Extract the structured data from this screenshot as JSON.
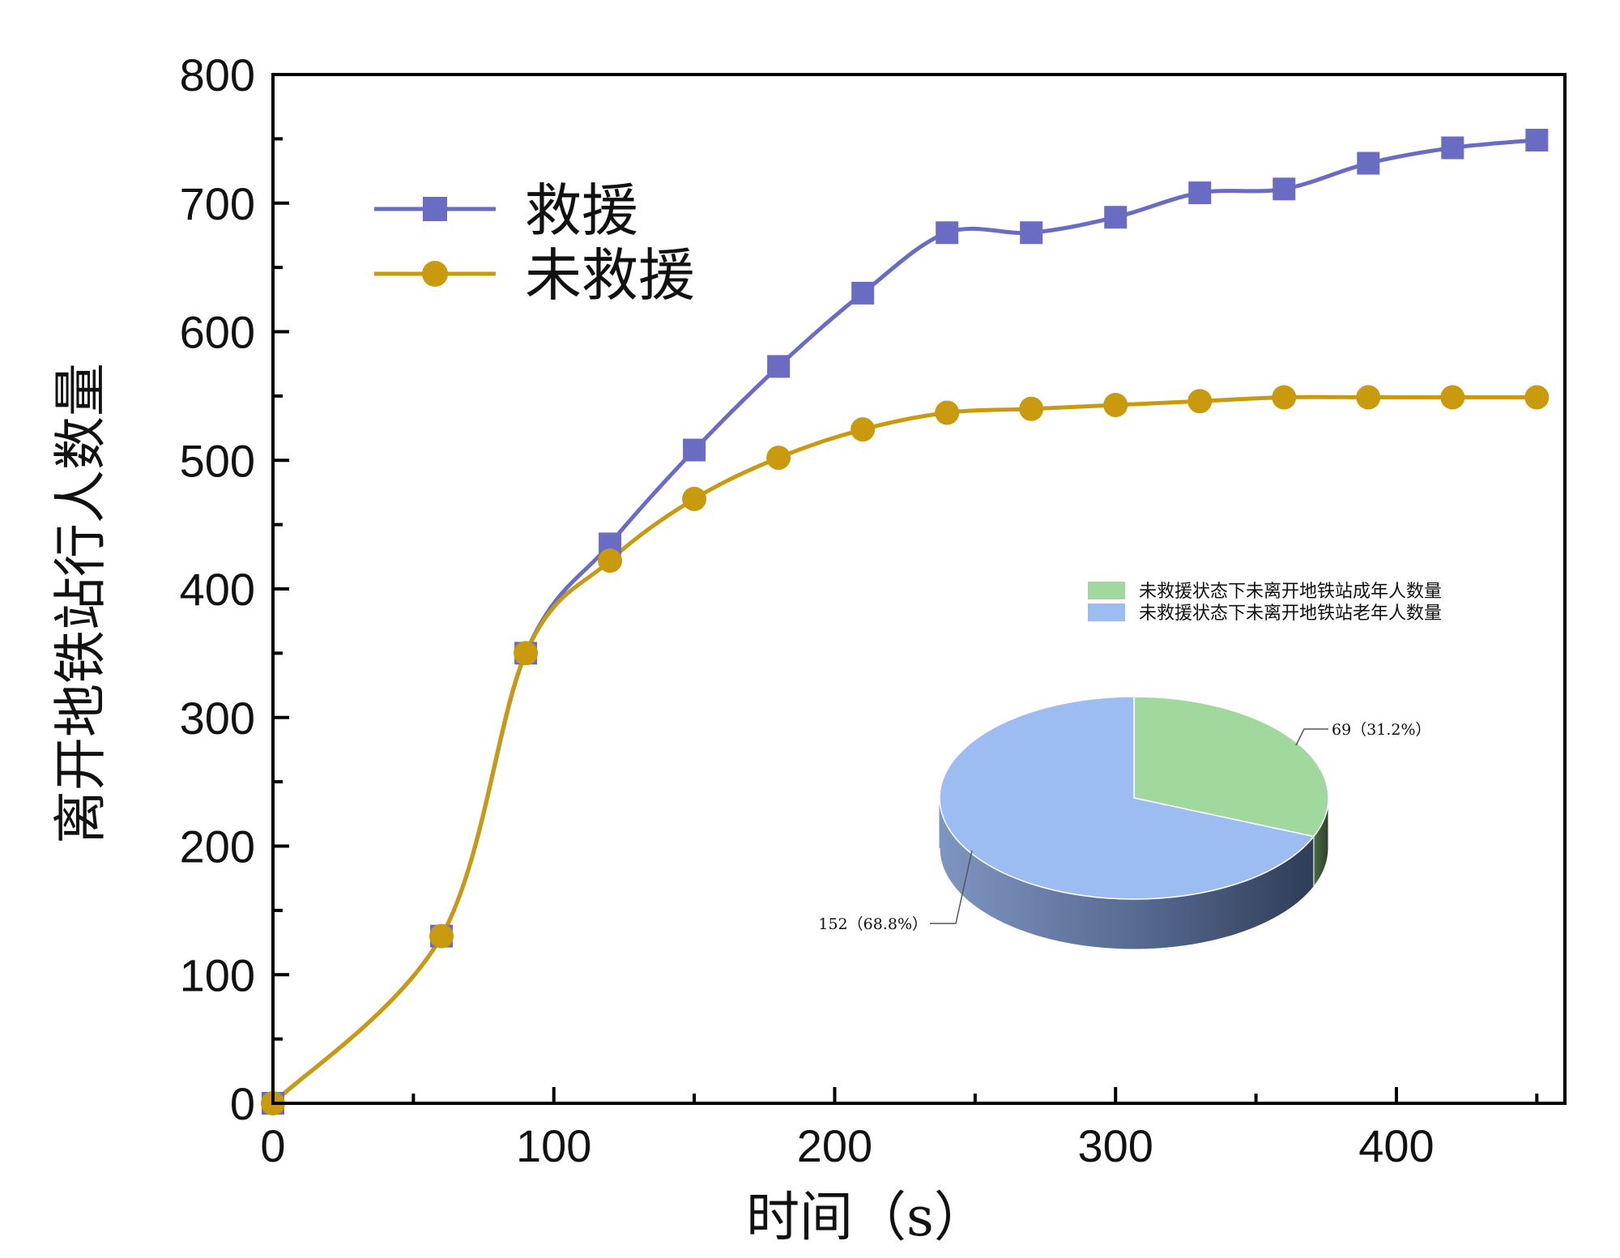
{
  "chart_data": [
    {
      "type": "line",
      "title": "",
      "xlabel": "时间（s）",
      "ylabel": "离开地铁站行人数量",
      "xlim": [
        0,
        460
      ],
      "ylim": [
        0,
        800
      ],
      "x_ticks": [
        "0",
        "100",
        "200",
        "300",
        "400"
      ],
      "x_tick_values": [
        0,
        100,
        200,
        300,
        400
      ],
      "y_ticks": [
        "0",
        "100",
        "200",
        "300",
        "400",
        "500",
        "600",
        "700",
        "800"
      ],
      "y_tick_values": [
        0,
        100,
        200,
        300,
        400,
        500,
        600,
        700,
        800
      ],
      "legend_position": "top-left",
      "series": [
        {
          "name": "救援",
          "marker": "square",
          "color": "#6a6cc4",
          "x": [
            0,
            60,
            90,
            120,
            150,
            180,
            210,
            240,
            270,
            300,
            330,
            360,
            390,
            420,
            450
          ],
          "values": [
            0,
            130,
            350,
            435,
            508,
            573,
            630,
            677,
            677,
            689,
            708,
            711,
            731,
            743,
            749
          ]
        },
        {
          "name": "未救援",
          "marker": "circle",
          "color": "#c99a0e",
          "x": [
            0,
            60,
            90,
            120,
            150,
            180,
            210,
            240,
            270,
            300,
            330,
            360,
            390,
            420,
            450
          ],
          "values": [
            0,
            130,
            350,
            422,
            470,
            502,
            524,
            537,
            540,
            543,
            546,
            549,
            549,
            549,
            549
          ]
        }
      ]
    },
    {
      "type": "pie",
      "style": "3d",
      "legend_position": "top",
      "slices": [
        {
          "label": "未救援状态下未离开地铁站成年人数量",
          "value": 69,
          "percent": 31.2,
          "data_label": "69（31.2%）",
          "color": "#a0d89e"
        },
        {
          "label": "未救援状态下未离开地铁站老年人数量",
          "value": 152,
          "percent": 68.8,
          "data_label": "152（68.8%）",
          "color": "#9dbcf2"
        }
      ]
    }
  ]
}
